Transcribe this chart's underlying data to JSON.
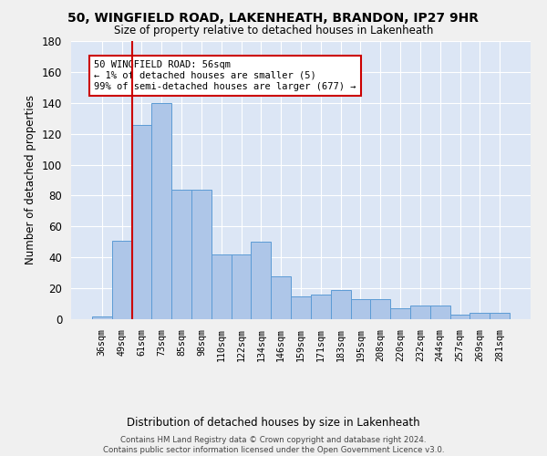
{
  "title": "50, WINGFIELD ROAD, LAKENHEATH, BRANDON, IP27 9HR",
  "subtitle": "Size of property relative to detached houses in Lakenheath",
  "xlabel": "Distribution of detached houses by size in Lakenheath",
  "ylabel": "Number of detached properties",
  "bar_labels": [
    "36sqm",
    "49sqm",
    "61sqm",
    "73sqm",
    "85sqm",
    "98sqm",
    "110sqm",
    "122sqm",
    "134sqm",
    "146sqm",
    "159sqm",
    "171sqm",
    "183sqm",
    "195sqm",
    "208sqm",
    "220sqm",
    "232sqm",
    "244sqm",
    "257sqm",
    "269sqm",
    "281sqm"
  ],
  "bar_values": [
    2,
    51,
    126,
    140,
    84,
    84,
    42,
    42,
    50,
    28,
    15,
    16,
    19,
    13,
    13,
    7,
    9,
    9,
    3,
    4,
    4
  ],
  "bar_color": "#aec6e8",
  "bar_edge_color": "#5b9bd5",
  "background_color": "#dce6f5",
  "grid_color": "#ffffff",
  "annotation_text": "50 WINGFIELD ROAD: 56sqm\n← 1% of detached houses are smaller (5)\n99% of semi-detached houses are larger (677) →",
  "annotation_box_color": "#ffffff",
  "annotation_box_edge": "#cc0000",
  "vline_x": 1.5,
  "vline_color": "#cc0000",
  "ylim": [
    0,
    180
  ],
  "yticks": [
    0,
    20,
    40,
    60,
    80,
    100,
    120,
    140,
    160,
    180
  ],
  "footer": "Contains HM Land Registry data © Crown copyright and database right 2024.\nContains public sector information licensed under the Open Government Licence v3.0."
}
